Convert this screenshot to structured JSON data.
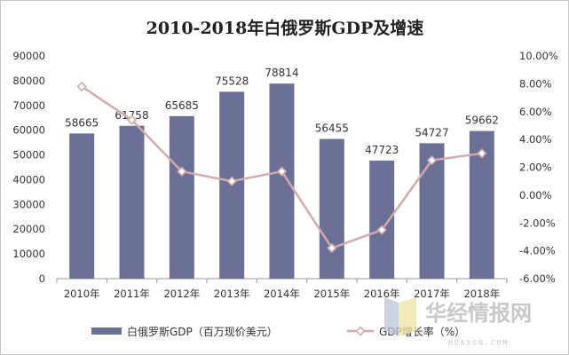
{
  "chart_data": {
    "type": "bar",
    "title": "2010-2018年白俄罗斯GDP及增速",
    "categories": [
      "2010年",
      "2011年",
      "2012年",
      "2013年",
      "2014年",
      "2015年",
      "2016年",
      "2017年",
      "2018年"
    ],
    "series": [
      {
        "name": "白俄罗斯GDP（百万现价美元）",
        "type": "bar",
        "axis": "left",
        "color": "#6b7196",
        "values": [
          58665,
          61758,
          65685,
          75528,
          78814,
          56455,
          47723,
          54727,
          59662
        ]
      },
      {
        "name": "GDP增长率（%）",
        "type": "line",
        "axis": "right",
        "color": "#d4a9ab",
        "values": [
          7.8,
          5.4,
          1.7,
          1.0,
          1.7,
          -3.8,
          -2.5,
          2.5,
          3.0
        ]
      }
    ],
    "y_left": {
      "ylim": [
        0,
        90000
      ],
      "ticks": [
        "0",
        "10000",
        "20000",
        "30000",
        "40000",
        "50000",
        "60000",
        "70000",
        "80000",
        "90000"
      ]
    },
    "y_right": {
      "ylim": [
        -6,
        10
      ],
      "ticks": [
        "-6.00%",
        "-4.00%",
        "-2.00%",
        "0.00%",
        "2.00%",
        "4.00%",
        "6.00%",
        "8.00%",
        "10.00%"
      ]
    },
    "grid": false,
    "legend_position": "bottom"
  },
  "watermark": {
    "text": "华经情报网",
    "subtext": "HUAXON.COM"
  }
}
